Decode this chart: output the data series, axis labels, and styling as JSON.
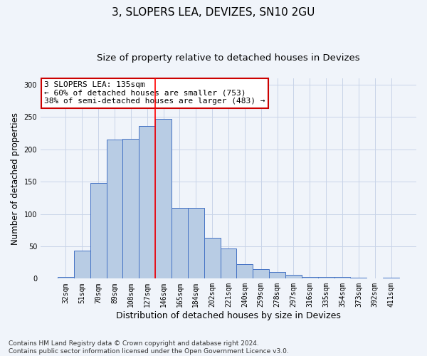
{
  "title": "3, SLOPERS LEA, DEVIZES, SN10 2GU",
  "subtitle": "Size of property relative to detached houses in Devizes",
  "xlabel": "Distribution of detached houses by size in Devizes",
  "ylabel": "Number of detached properties",
  "categories": [
    "32sqm",
    "51sqm",
    "70sqm",
    "89sqm",
    "108sqm",
    "127sqm",
    "146sqm",
    "165sqm",
    "184sqm",
    "202sqm",
    "221sqm",
    "240sqm",
    "259sqm",
    "278sqm",
    "297sqm",
    "316sqm",
    "335sqm",
    "354sqm",
    "373sqm",
    "392sqm",
    "411sqm"
  ],
  "values": [
    3,
    43,
    148,
    215,
    216,
    236,
    247,
    109,
    110,
    63,
    47,
    22,
    15,
    10,
    6,
    3,
    3,
    3,
    1,
    0,
    2
  ],
  "bar_color": "#b8cce4",
  "bar_edge_color": "#4472c4",
  "vline_x": 5.5,
  "vline_color": "#ff0000",
  "annotation_text": "3 SLOPERS LEA: 135sqm\n← 60% of detached houses are smaller (753)\n38% of semi-detached houses are larger (483) →",
  "annotation_box_color": "#ffffff",
  "annotation_box_edge_color": "#cc0000",
  "ylim": [
    0,
    310
  ],
  "yticks": [
    0,
    50,
    100,
    150,
    200,
    250,
    300
  ],
  "footer_line1": "Contains HM Land Registry data © Crown copyright and database right 2024.",
  "footer_line2": "Contains public sector information licensed under the Open Government Licence v3.0.",
  "title_fontsize": 11,
  "subtitle_fontsize": 9.5,
  "xlabel_fontsize": 9,
  "ylabel_fontsize": 8.5,
  "tick_fontsize": 7,
  "annotation_fontsize": 8,
  "footer_fontsize": 6.5,
  "background_color": "#f0f4fa",
  "grid_color": "#c8d4e8"
}
